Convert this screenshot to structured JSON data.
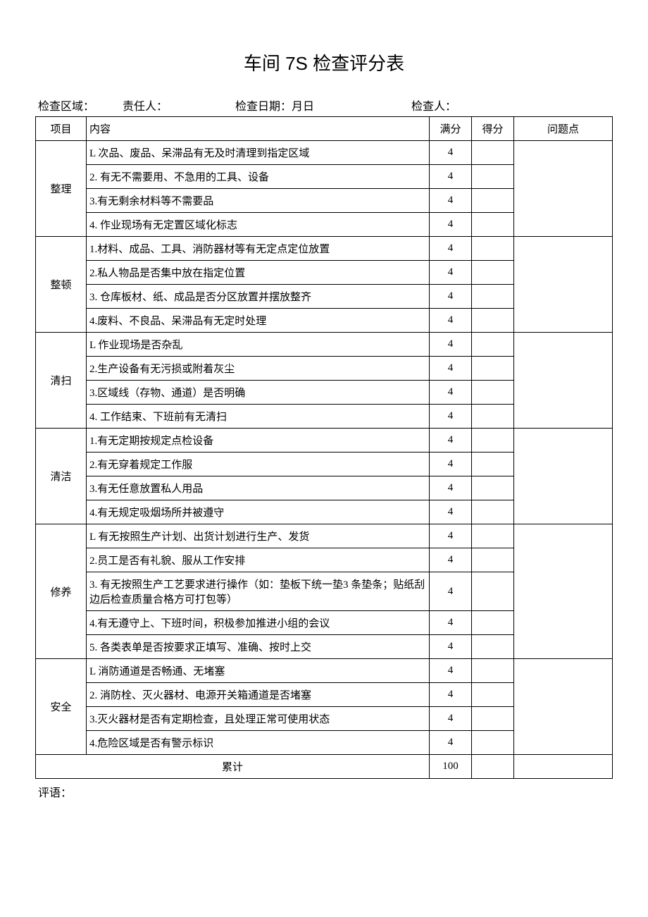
{
  "title": "车间 7S 检查评分表",
  "meta": {
    "area_label": "检查区域：",
    "person_label": "责任人：",
    "date_label": "检查日期：月日",
    "inspector_label": "检查人："
  },
  "headers": {
    "category": "项目",
    "content": "内容",
    "full": "满分",
    "score": "得分",
    "issue": "问题点"
  },
  "sections": [
    {
      "name": "整理",
      "items": [
        {
          "text": "L 次品、废品、呆滞品有无及时清理到指定区域",
          "full": "4"
        },
        {
          "text": "2. 有无不需要用、不急用的工具、设备",
          "full": "4"
        },
        {
          "text": "3.有无剩余材料等不需要品",
          "full": "4"
        },
        {
          "text": "4. 作业现场有无定置区域化标志",
          "full": "4"
        }
      ]
    },
    {
      "name": "整顿",
      "items": [
        {
          "text": "1.材料、成品、工具、消防器材等有无定点定位放置",
          "full": "4"
        },
        {
          "text": "2.私人物品是否集中放在指定位置",
          "full": "4"
        },
        {
          "text": "3. 仓库板材、纸、成品是否分区放置并摆放整齐",
          "full": "4"
        },
        {
          "text": "4.废料、不良品、呆滞品有无定时处理",
          "full": "4"
        }
      ]
    },
    {
      "name": "清扫",
      "items": [
        {
          "text": "L 作业现场是否杂乱",
          "full": "4"
        },
        {
          "text": "2.生产设备有无污损或附着灰尘",
          "full": "4"
        },
        {
          "text": "3.区域线（存物、通道）是否明确",
          "full": "4"
        },
        {
          "text": "4. 工作结束、下班前有无清扫",
          "full": "4"
        }
      ]
    },
    {
      "name": "清洁",
      "items": [
        {
          "text": "1.有无定期按规定点检设备",
          "full": "4"
        },
        {
          "text": "2.有无穿着规定工作服",
          "full": "4"
        },
        {
          "text": "3.有无任意放置私人用品",
          "full": "4"
        },
        {
          "text": "4.有无规定吸烟场所并被遵守",
          "full": "4"
        }
      ]
    },
    {
      "name": "修养",
      "items": [
        {
          "text": "L 有无按照生产计划、出货计划进行生产、发货",
          "full": "4"
        },
        {
          "text": "2.员工是否有礼貌、服从工作安排",
          "full": "4"
        },
        {
          "text": "3. 有无按照生产工艺要求进行操作（如：垫板下统一垫3 条垫条；贴纸刮边后检查质量合格方可打包等）",
          "full": "4"
        },
        {
          "text": "4.有无遵守上、下班时间，积极参加推进小组的会议",
          "full": "4"
        },
        {
          "text": "5. 各类表单是否按要求正填写、准确、按时上交",
          "full": "4"
        }
      ]
    },
    {
      "name": "安全",
      "items": [
        {
          "text": "L 消防通道是否畅通、无堵塞",
          "full": "4"
        },
        {
          "text": "2. 消防栓、灭火器材、电源开关箱通道是否堵塞",
          "full": "4"
        },
        {
          "text": "3.灭火器材是否有定期检查，且处理正常可使用状态",
          "full": "4"
        },
        {
          "text": "4.危险区域是否有警示标识",
          "full": "4"
        }
      ]
    }
  ],
  "total": {
    "label": "累计",
    "value": "100"
  },
  "footer": "评语："
}
